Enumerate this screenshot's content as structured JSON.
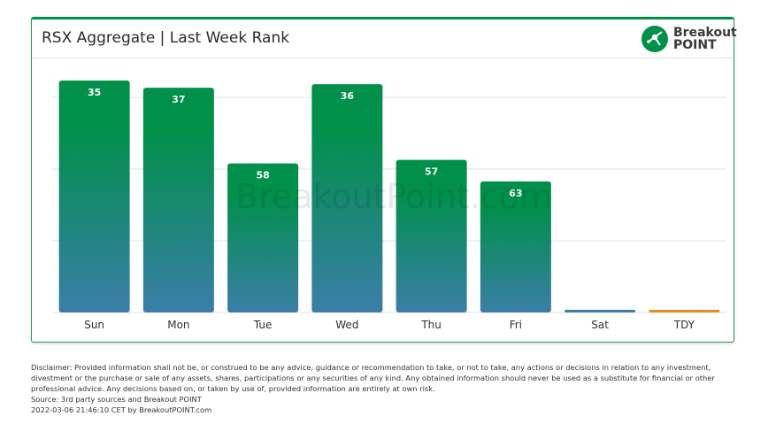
{
  "title": "RSX Aggregate | Last Week Rank",
  "logo": {
    "line1": "Breakout",
    "line2": "POINT"
  },
  "watermark": "BreakoutPoint.com",
  "colors": {
    "bar_top": "#00904a",
    "bar_bottom": "#3a7ea8",
    "tdy": "#e0901c",
    "grid": "#e0e0e0",
    "accent": "#00904a"
  },
  "chart_data": {
    "type": "bar",
    "categories": [
      "Sun",
      "Mon",
      "Tue",
      "Wed",
      "Thu",
      "Fri",
      "Sat",
      "TDY"
    ],
    "values": [
      35,
      37,
      58,
      36,
      57,
      63,
      null,
      null
    ],
    "data_labels": [
      "35",
      "37",
      "58",
      "36",
      "57",
      "63",
      "",
      ""
    ],
    "title": "RSX Aggregate | Last Week Rank",
    "grid": true,
    "legend": "none"
  },
  "footer": {
    "disclaimer": "Disclaimer: Provided information shall not be, or construed to be any advice, guidance or recommendation to take, or not to take, any actions or decisions in relation to any investment, divestment or the purchase or sale of any assets, shares, participations or any securities of any kind. Any obtained information should never be used as a substitute for financial or other professional advice. Any decisions based on, or taken by use of, provided information are entirely at own risk.",
    "source": "Source: 3rd party sources and Breakout POINT",
    "timestamp": "2022-03-06 21:46:10 CET by BreakoutPOINT.com"
  }
}
